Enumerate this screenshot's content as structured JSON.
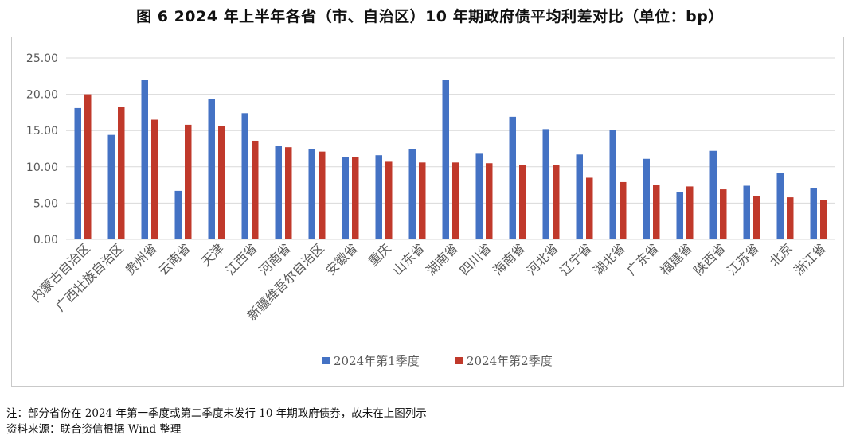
{
  "title": "图 6  2024 年上半年各省（市、自治区）10 年期政府债平均利差对比（单位：bp）",
  "notes": {
    "note": "注：部分省份在 2024 年第一季度或第二季度未发行 10 年期政府债券，故未在上图列示",
    "source": "资料来源：联合资信根据 Wind 整理"
  },
  "colors": {
    "series1": "#4472C4",
    "series2": "#C0392B",
    "grid": "#d9d9d9",
    "axis_text": "#595959"
  },
  "chart_data": {
    "type": "bar",
    "title": "图 6  2024 年上半年各省（市、自治区）10 年期政府债平均利差对比（单位：bp）",
    "xlabel": "",
    "ylabel": "",
    "ylim": [
      0,
      25
    ],
    "yticks": [
      "0.00",
      "5.00",
      "10.00",
      "15.00",
      "20.00",
      "25.00"
    ],
    "grid": true,
    "legend_position": "bottom-center",
    "categories": [
      "内蒙古自治区",
      "广西壮族自治区",
      "贵州省",
      "云南省",
      "天津",
      "江西省",
      "河南省",
      "新疆维吾尔自治区",
      "安徽省",
      "重庆",
      "山东省",
      "湖南省",
      "四川省",
      "海南省",
      "河北省",
      "辽宁省",
      "湖北省",
      "广东省",
      "福建省",
      "陕西省",
      "江苏省",
      "北京",
      "浙江省"
    ],
    "series": [
      {
        "name": "2024年第1季度",
        "values": [
          18.1,
          14.4,
          22.0,
          6.7,
          19.3,
          17.4,
          12.9,
          12.5,
          11.4,
          11.6,
          12.5,
          22.0,
          11.8,
          16.9,
          15.2,
          11.7,
          15.1,
          11.1,
          6.5,
          12.2,
          7.4,
          9.2,
          7.1
        ]
      },
      {
        "name": "2024年第2季度",
        "values": [
          20.0,
          18.3,
          16.5,
          15.8,
          15.6,
          13.6,
          12.7,
          12.1,
          11.4,
          10.7,
          10.6,
          10.6,
          10.5,
          10.3,
          10.3,
          8.5,
          7.9,
          7.5,
          7.3,
          6.9,
          6.0,
          5.8,
          5.4
        ]
      }
    ]
  }
}
